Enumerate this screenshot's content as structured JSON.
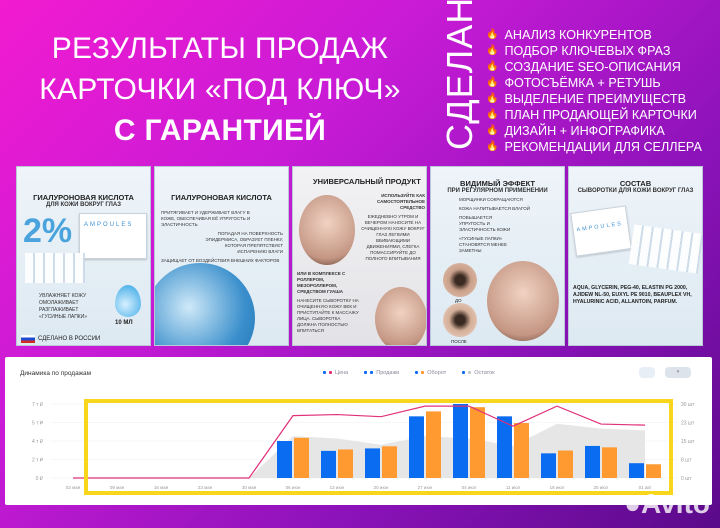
{
  "headline": {
    "line1": "РЕЗУЛЬТАТЫ ПРОДАЖ",
    "line2": "КАРТОЧКИ «ПОД КЛЮЧ»",
    "line3": "С ГАРАНТИЕЙ"
  },
  "done_label": "СДЕЛАНО",
  "done_items": [
    "АНАЛИЗ КОНКУРЕНТОВ",
    "ПОДБОР КЛЮЧЕВЫХ ФРАЗ",
    "СОЗДАНИЕ SEO-ОПИСАНИЯ",
    "ФОТОСЪЁМКА + РЕТУШЬ",
    "ВЫДЕЛЕНИЕ ПРЕИМУЩЕСТВ",
    "ПЛАН ПРОДАЮЩЕЙ КАРТОЧКИ",
    "ДИЗАЙН + ИНФОГРАФИКА",
    "РЕКОМЕНДАЦИИ ДЛЯ СЕЛЛЕРА"
  ],
  "cards": [
    {
      "title": "ГИАЛУРОНОВАЯ КИСЛОТА",
      "subtitle": "ДЛЯ КОЖИ ВОКРУГ ГЛАЗ",
      "percent": "2%",
      "brand": "AMPOULES",
      "benefits": [
        "УВЛАЖНЯЕТ КОЖУ",
        "ОМОЛАЖИВАЕТ",
        "РАЗГЛАЖИВАЕТ «ГУСИНЫЕ ЛАПКИ»"
      ],
      "volume": "10 МЛ",
      "made_in": "СДЕЛАНО В РОССИИ"
    },
    {
      "title": "ГИАЛУРОНОВАЯ КИСЛОТА",
      "points": [
        "ПРИТЯГИВАЕТ И УДЕРЖИВАЕТ ВЛАГУ В КОЖЕ, ОБЕСПЕЧИВАЯ ЕЁ УПРУГОСТЬ И ЭЛАСТИЧНОСТЬ",
        "ПОПАДАЯ НА ПОВЕРХНОСТЬ ЭПИДЕРМИСА, ОБРАЗУЕТ ПЛЕНКУ, КОТОРАЯ ПРЕПЯТСТВУЕТ ИСПАРЕНИЮ ВЛАГИ",
        "ЗАЩИЩАЕТ ОТ ВОЗДЕЙСТВИЯ ВНЕШНИХ ФАКТОРОВ"
      ]
    },
    {
      "title": "УНИВЕРСАЛЬНЫЙ ПРОДУКТ",
      "p1_head": "ИСПОЛЬЗУЙТЕ КАК САМОСТОЯТЕЛЬНОЕ СРЕДСТВО",
      "p1": "ЕЖЕДНЕВНО УТРОМ И ВЕЧЕРОМ НАНОСИТЕ НА ОЧИЩЕННУЮ КОЖУ ВОКРУГ ГЛАЗ ЛЕГКИМИ ВБИВАЮЩИМИ ДВИЖЕНИЯМИ, СЛЕГКА ПОМАССИРУЙТЕ ДО ПОЛНОГО ВПИТЫВАНИЯ",
      "p2_head": "ИЛИ В КОМПЛЕКСЕ С РОЛЛЕРОМ, МЕЗОРОЛЛЕРОМ, СРЕДСТВОМ ГУАША",
      "p2": "НАНЕСИТЕ СЫВОРОТКУ НА ОЧИЩЕННУЮ КОЖУ ВЕК И ПРИСТУПАЙТЕ К МАССАЖУ ЛИЦА. СЫВОРОТКА ДОЛЖНА ПОЛНОСТЬЮ ВПИТАТЬСЯ"
    },
    {
      "title": "ВИДИМЫЙ ЭФФЕКТ",
      "subtitle": "ПРИ РЕГУЛЯРНОМ ПРИМЕНЕНИИ",
      "points": [
        "МОРЩИНКИ СОКРАЩАЮТСЯ",
        "КОЖА НАПИТЫВАЕТСЯ ВЛАГОЙ",
        "ПОВЫШАЕТСЯ УПРУГОСТЬ И ЭЛАСТИЧНОСТЬ КОЖИ",
        "«ГУСИНЫЕ ЛАПКИ» СТАНОВЯТСЯ МЕНЕЕ ЗАМЕТНЫ"
      ],
      "before": "ДО",
      "after": "ПОСЛЕ"
    },
    {
      "title": "СОСТАВ",
      "subtitle": "СЫВОРОТКИ ДЛЯ КОЖИ ВОКРУГ ГЛАЗ",
      "brand": "AMPOULES",
      "ingredients": "AQUA, GLYCERIN, PEG-40, ELASTIN PG 2000, AJIDEW NL-50, EUXYL PE 9010, BEAUPLEX VH, HYALURINIC ACID, ALLANTOIN, PARFUM."
    }
  ],
  "chart_panel": {
    "title": "Динамика по продажам",
    "legend": [
      {
        "label": "Цена",
        "color": "#e0307a"
      },
      {
        "label": "Продажи",
        "color": "#0a6cf0"
      },
      {
        "label": "Оборот",
        "color": "#ff9a30"
      },
      {
        "label": "Остаток",
        "color": "#c8c8c8"
      }
    ],
    "highlight_color": "#f7d61c"
  },
  "chart_data": {
    "type": "bar",
    "categories": [
      "02 мая",
      "09 мая",
      "16 мая",
      "23 мая",
      "30 мая",
      "06 июн",
      "13 июн",
      "20 июн",
      "27 июн",
      "04 июл",
      "11 июл",
      "18 июл",
      "25 июл",
      "01 авг"
    ],
    "left_ticks": [
      "0 ₽",
      "2 т ₽",
      "4 т ₽",
      "5 т ₽",
      "7 т ₽"
    ],
    "right_ticks": [
      "0 шт",
      "8 шт",
      "15 шт",
      "23 шт",
      "30 шт"
    ],
    "left_ylim": [
      0,
      7
    ],
    "right_ylim": [
      0,
      30
    ],
    "series": [
      {
        "name": "Продажи",
        "axis": "right",
        "kind": "bar",
        "values": [
          0,
          0,
          0,
          0,
          0,
          15,
          11,
          12,
          25,
          30,
          25,
          10,
          13,
          6
        ]
      },
      {
        "name": "Оборот",
        "axis": "left",
        "kind": "bar",
        "values": [
          0,
          0,
          0,
          0,
          0,
          3.8,
          2.7,
          3.0,
          6.3,
          6.7,
          5.2,
          2.6,
          2.9,
          1.3
        ]
      },
      {
        "name": "Цена",
        "axis": "left",
        "kind": "line",
        "values": [
          0,
          0,
          0,
          0,
          0,
          5.9,
          6.0,
          5.8,
          6.8,
          6.8,
          4.9,
          6.8,
          5.1,
          5.0
        ]
      },
      {
        "name": "Остаток",
        "axis": "right",
        "kind": "area",
        "values": [
          null,
          null,
          null,
          null,
          0,
          17,
          16,
          13.5,
          17,
          16,
          13,
          22,
          20,
          19.3
        ]
      }
    ],
    "grid": true
  },
  "watermark": "Avito"
}
